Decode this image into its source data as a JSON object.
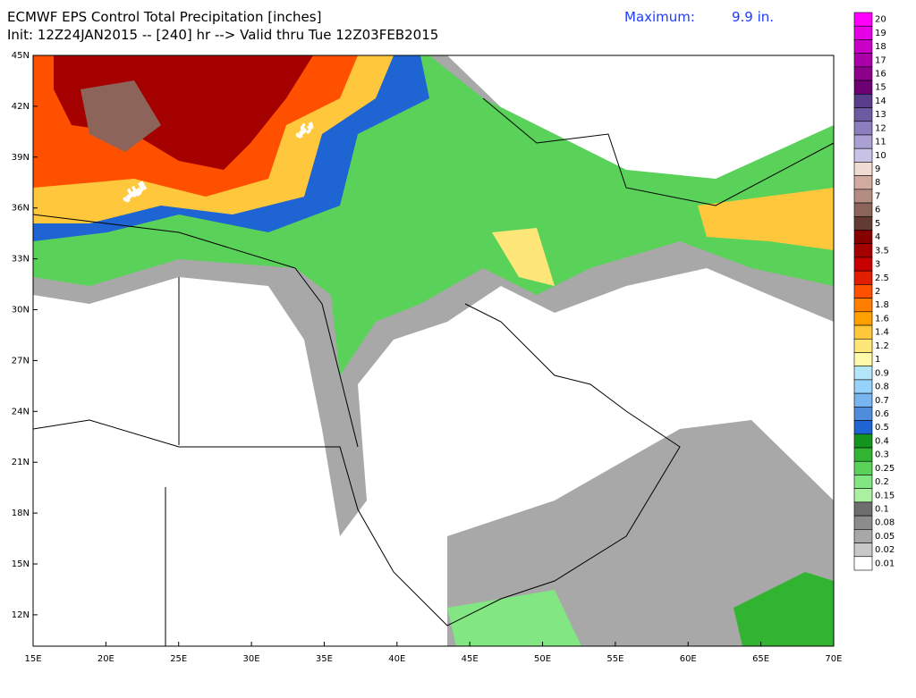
{
  "header": {
    "title": "ECMWF EPS Control Total Precipitation [inches]",
    "subtitle": "Init: 12Z24JAN2015 -- [240] hr --> Valid thru Tue 12Z03FEB2015",
    "maximum_label": "Maximum:",
    "maximum_value": "9.9 in."
  },
  "map": {
    "lat_labels": [
      "45N",
      "42N",
      "39N",
      "36N",
      "33N",
      "30N",
      "27N",
      "24N",
      "21N",
      "18N",
      "15N",
      "12N"
    ],
    "lon_labels": [
      "15E",
      "20E",
      "25E",
      "30E",
      "35E",
      "40E",
      "45E",
      "50E",
      "55E",
      "60E",
      "65E",
      "70E"
    ],
    "watermark": [
      "تركي",
      "الوايلي"
    ]
  },
  "legend": {
    "labels": [
      "20",
      "19",
      "18",
      "17",
      "16",
      "15",
      "14",
      "13",
      "12",
      "11",
      "10",
      "9",
      "8",
      "7",
      "6",
      "5",
      "4",
      "3.5",
      "3",
      "2.5",
      "2",
      "1.8",
      "1.6",
      "1.4",
      "1.2",
      "1",
      "0.9",
      "0.8",
      "0.7",
      "0.6",
      "0.5",
      "0.4",
      "0.3",
      "0.25",
      "0.2",
      "0.15",
      "0.1",
      "0.08",
      "0.05",
      "0.02",
      "0.01"
    ],
    "colors": [
      "#ff00ff",
      "#e600e6",
      "#c800c8",
      "#aa00aa",
      "#8c008c",
      "#6e0073",
      "#5a3c8c",
      "#6e5aa0",
      "#8c7dbe",
      "#aaa0d2",
      "#c8c3e6",
      "#f0dcd2",
      "#d2aaa0",
      "#b48c82",
      "#8c645a",
      "#643b32",
      "#870000",
      "#a50000",
      "#c80000",
      "#e11e00",
      "#ff5000",
      "#ff7d00",
      "#ffa000",
      "#ffc83c",
      "#ffe678",
      "#fffaaa",
      "#b4e6fa",
      "#96d2fa",
      "#78b4f0",
      "#508cdc",
      "#1e64d2",
      "#14961e",
      "#32b432",
      "#5ad25a",
      "#82e682",
      "#aaf0a0",
      "#6e6e6e",
      "#8c8c8c",
      "#a8a8a8",
      "#c8c8c8",
      "#ffffff"
    ]
  }
}
